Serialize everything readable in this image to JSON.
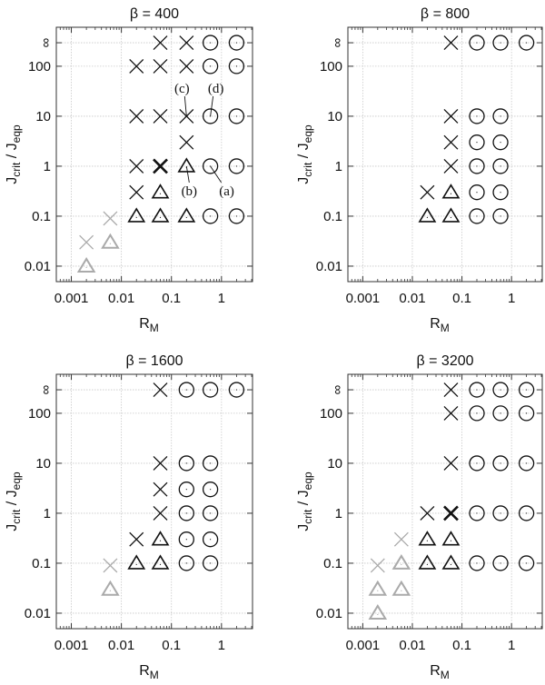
{
  "chart_data": [
    {
      "type": "scatter",
      "title": "β = 400",
      "xlabel": "R",
      "xlabel_sub": "M",
      "ylabel_main": "J",
      "ylabel_sub1": "crit",
      "ylabel_mid": " / J",
      "ylabel_sub2": "eqp",
      "xscale": "log",
      "yscale": "log",
      "xticks": [
        {
          "v": 0.001,
          "label": "0.001"
        },
        {
          "v": 0.01,
          "label": "0.01"
        },
        {
          "v": 0.1,
          "label": "0.1"
        },
        {
          "v": 1,
          "label": "1"
        }
      ],
      "yticks": [
        {
          "v": 0.01,
          "label": "0.01"
        },
        {
          "v": 0.1,
          "label": "0.1"
        },
        {
          "v": 1,
          "label": "1"
        },
        {
          "v": 10,
          "label": "10"
        },
        {
          "v": 100,
          "label": "100"
        },
        {
          "v": "inf",
          "label": "∞"
        }
      ],
      "grid": true,
      "points": [
        [
          0.06,
          "inf",
          "x",
          0
        ],
        [
          0.2,
          "inf",
          "x",
          0
        ],
        [
          0.6,
          "inf",
          "o",
          0
        ],
        [
          2,
          "inf",
          "o",
          0
        ],
        [
          0.02,
          100,
          "x",
          0
        ],
        [
          0.06,
          100,
          "x",
          0
        ],
        [
          0.2,
          100,
          "x",
          0
        ],
        [
          0.6,
          100,
          "o",
          0
        ],
        [
          2,
          100,
          "o",
          0
        ],
        [
          0.02,
          10,
          "x",
          0
        ],
        [
          0.06,
          10,
          "x",
          0
        ],
        [
          0.2,
          10,
          "x",
          0
        ],
        [
          0.6,
          10,
          "o",
          0
        ],
        [
          2,
          10,
          "o",
          0
        ],
        [
          0.2,
          3,
          "x",
          0
        ],
        [
          0.02,
          1,
          "x",
          0
        ],
        [
          0.06,
          1,
          "X",
          0
        ],
        [
          0.2,
          1,
          "t",
          0
        ],
        [
          0.6,
          1,
          "o",
          0
        ],
        [
          2,
          1,
          "o",
          0
        ],
        [
          0.02,
          0.3,
          "x",
          0
        ],
        [
          0.06,
          0.3,
          "t",
          0
        ],
        [
          0.02,
          0.1,
          "t",
          0
        ],
        [
          0.06,
          0.1,
          "t",
          0
        ],
        [
          0.2,
          0.1,
          "t",
          0
        ],
        [
          0.6,
          0.1,
          "o",
          0
        ],
        [
          2,
          0.1,
          "o",
          0
        ],
        [
          0.006,
          0.09,
          "x",
          1
        ],
        [
          0.002,
          0.03,
          "x",
          1
        ],
        [
          0.006,
          0.03,
          "t",
          1
        ],
        [
          0.002,
          0.01,
          "t",
          1
        ]
      ],
      "annotations": [
        {
          "text": "(c)",
          "x": 0.2,
          "y": 10,
          "pos": "above-left"
        },
        {
          "text": "(d)",
          "x": 0.6,
          "y": 10,
          "pos": "above"
        },
        {
          "text": "(b)",
          "x": 0.2,
          "y": 1,
          "pos": "below"
        },
        {
          "text": "(a)",
          "x": 0.6,
          "y": 1,
          "pos": "below-right"
        }
      ]
    },
    {
      "type": "scatter",
      "title": "β = 800",
      "xlabel": "R",
      "xlabel_sub": "M",
      "ylabel_main": "J",
      "ylabel_sub1": "crit",
      "ylabel_mid": " / J",
      "ylabel_sub2": "eqp",
      "xscale": "log",
      "yscale": "log",
      "xticks": [
        {
          "v": 0.001,
          "label": "0.001"
        },
        {
          "v": 0.01,
          "label": "0.01"
        },
        {
          "v": 0.1,
          "label": "0.1"
        },
        {
          "v": 1,
          "label": "1"
        }
      ],
      "yticks": [
        {
          "v": 0.01,
          "label": "0.01"
        },
        {
          "v": 0.1,
          "label": "0.1"
        },
        {
          "v": 1,
          "label": "1"
        },
        {
          "v": 10,
          "label": "10"
        },
        {
          "v": 100,
          "label": "100"
        },
        {
          "v": "inf",
          "label": "∞"
        }
      ],
      "grid": true,
      "points": [
        [
          0.06,
          "inf",
          "x",
          0
        ],
        [
          0.2,
          "inf",
          "o",
          0
        ],
        [
          0.6,
          "inf",
          "o",
          0
        ],
        [
          2,
          "inf",
          "o",
          0
        ],
        [
          0.06,
          10,
          "x",
          0
        ],
        [
          0.2,
          10,
          "o",
          0
        ],
        [
          0.6,
          10,
          "o",
          0
        ],
        [
          0.06,
          3,
          "x",
          0
        ],
        [
          0.2,
          3,
          "o",
          0
        ],
        [
          0.6,
          3,
          "o",
          0
        ],
        [
          0.06,
          1,
          "x",
          0
        ],
        [
          0.2,
          1,
          "o",
          0
        ],
        [
          0.6,
          1,
          "o",
          0
        ],
        [
          0.02,
          0.3,
          "x",
          0
        ],
        [
          0.06,
          0.3,
          "t",
          0
        ],
        [
          0.2,
          0.3,
          "o",
          0
        ],
        [
          0.6,
          0.3,
          "o",
          0
        ],
        [
          0.02,
          0.1,
          "t",
          0
        ],
        [
          0.06,
          0.1,
          "t",
          0
        ],
        [
          0.2,
          0.1,
          "o",
          0
        ],
        [
          0.6,
          0.1,
          "o",
          0
        ]
      ],
      "annotations": []
    },
    {
      "type": "scatter",
      "title": "β = 1600",
      "xlabel": "R",
      "xlabel_sub": "M",
      "ylabel_main": "J",
      "ylabel_sub1": "crit",
      "ylabel_mid": " / J",
      "ylabel_sub2": "eqp",
      "xscale": "log",
      "yscale": "log",
      "xticks": [
        {
          "v": 0.001,
          "label": "0.001"
        },
        {
          "v": 0.01,
          "label": "0.01"
        },
        {
          "v": 0.1,
          "label": "0.1"
        },
        {
          "v": 1,
          "label": "1"
        }
      ],
      "yticks": [
        {
          "v": 0.01,
          "label": "0.01"
        },
        {
          "v": 0.1,
          "label": "0.1"
        },
        {
          "v": 1,
          "label": "1"
        },
        {
          "v": 10,
          "label": "10"
        },
        {
          "v": 100,
          "label": "100"
        },
        {
          "v": "inf",
          "label": "∞"
        }
      ],
      "grid": true,
      "points": [
        [
          0.06,
          "inf",
          "x",
          0
        ],
        [
          0.2,
          "inf",
          "o",
          0
        ],
        [
          0.6,
          "inf",
          "o",
          0
        ],
        [
          2,
          "inf",
          "o",
          0
        ],
        [
          0.06,
          10,
          "x",
          0
        ],
        [
          0.2,
          10,
          "o",
          0
        ],
        [
          0.6,
          10,
          "o",
          0
        ],
        [
          0.06,
          3,
          "x",
          0
        ],
        [
          0.2,
          3,
          "o",
          0
        ],
        [
          0.6,
          3,
          "o",
          0
        ],
        [
          0.06,
          1,
          "x",
          0
        ],
        [
          0.2,
          1,
          "o",
          0
        ],
        [
          0.6,
          1,
          "o",
          0
        ],
        [
          0.02,
          0.3,
          "x",
          0
        ],
        [
          0.06,
          0.3,
          "t",
          0
        ],
        [
          0.2,
          0.3,
          "o",
          0
        ],
        [
          0.6,
          0.3,
          "o",
          0
        ],
        [
          0.02,
          0.1,
          "t",
          0
        ],
        [
          0.06,
          0.1,
          "t",
          0
        ],
        [
          0.2,
          0.1,
          "o",
          0
        ],
        [
          0.6,
          0.1,
          "o",
          0
        ],
        [
          0.006,
          0.09,
          "x",
          1
        ],
        [
          0.006,
          0.03,
          "t",
          1
        ]
      ],
      "annotations": []
    },
    {
      "type": "scatter",
      "title": "β = 3200",
      "xlabel": "R",
      "xlabel_sub": "M",
      "ylabel_main": "J",
      "ylabel_sub1": "crit",
      "ylabel_mid": " / J",
      "ylabel_sub2": "eqp",
      "xscale": "log",
      "yscale": "log",
      "xticks": [
        {
          "v": 0.001,
          "label": "0.001"
        },
        {
          "v": 0.01,
          "label": "0.01"
        },
        {
          "v": 0.1,
          "label": "0.1"
        },
        {
          "v": 1,
          "label": "1"
        }
      ],
      "yticks": [
        {
          "v": 0.01,
          "label": "0.01"
        },
        {
          "v": 0.1,
          "label": "0.1"
        },
        {
          "v": 1,
          "label": "1"
        },
        {
          "v": 10,
          "label": "10"
        },
        {
          "v": 100,
          "label": "100"
        },
        {
          "v": "inf",
          "label": "∞"
        }
      ],
      "grid": true,
      "points": [
        [
          0.06,
          "inf",
          "x",
          0
        ],
        [
          0.2,
          "inf",
          "o",
          0
        ],
        [
          0.6,
          "inf",
          "o",
          0
        ],
        [
          2,
          "inf",
          "o",
          0
        ],
        [
          0.06,
          100,
          "x",
          0
        ],
        [
          0.2,
          100,
          "o",
          0
        ],
        [
          0.6,
          100,
          "o",
          0
        ],
        [
          2,
          100,
          "o",
          0
        ],
        [
          0.06,
          10,
          "x",
          0
        ],
        [
          0.2,
          10,
          "o",
          0
        ],
        [
          0.6,
          10,
          "o",
          0
        ],
        [
          2,
          10,
          "o",
          0
        ],
        [
          0.02,
          1,
          "x",
          0
        ],
        [
          0.06,
          1,
          "X",
          0
        ],
        [
          0.2,
          1,
          "o",
          0
        ],
        [
          0.6,
          1,
          "o",
          0
        ],
        [
          2,
          1,
          "o",
          0
        ],
        [
          0.02,
          0.3,
          "t",
          0
        ],
        [
          0.06,
          0.3,
          "t",
          0
        ],
        [
          0.02,
          0.1,
          "t",
          0
        ],
        [
          0.06,
          0.1,
          "t",
          0
        ],
        [
          0.2,
          0.1,
          "o",
          0
        ],
        [
          0.6,
          0.1,
          "o",
          0
        ],
        [
          2,
          0.1,
          "o",
          0
        ],
        [
          0.006,
          0.3,
          "x",
          1
        ],
        [
          0.006,
          0.1,
          "t",
          1
        ],
        [
          0.006,
          0.03,
          "t",
          1
        ],
        [
          0.002,
          0.09,
          "x",
          1
        ],
        [
          0.002,
          0.03,
          "t",
          1
        ],
        [
          0.002,
          0.01,
          "t",
          1
        ]
      ],
      "annotations": []
    }
  ],
  "legend": {
    "marker_x": "cross",
    "marker_t": "triangle",
    "marker_o": "circle"
  },
  "colors": {
    "black": "#111111",
    "gray": "#aaaaaa",
    "grid": "#c8c8c8"
  }
}
